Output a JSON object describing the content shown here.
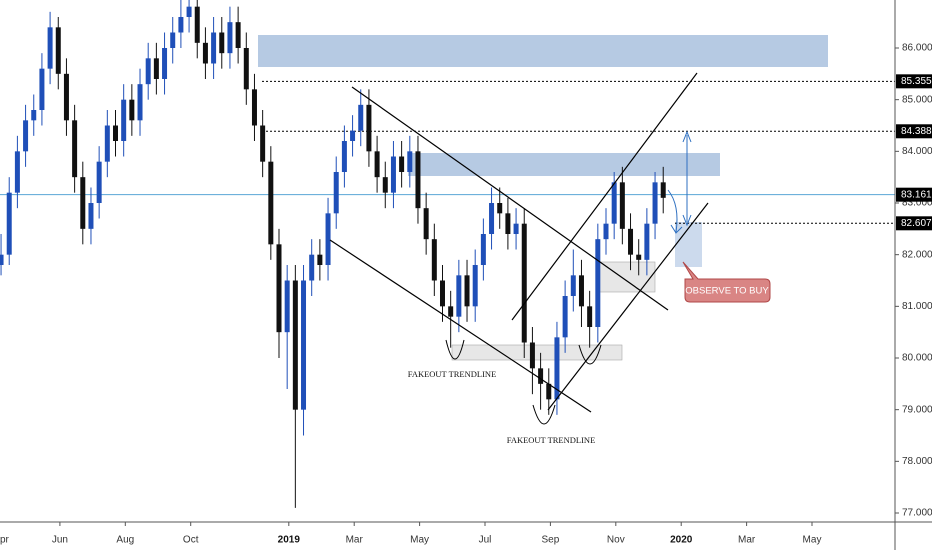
{
  "chart_data": {
    "type": "candlestick",
    "up_color": "#1f4fb8",
    "down_color": "#111111",
    "x": [
      0.2,
      0.45,
      0.7,
      0.95,
      1.2,
      1.45,
      1.7,
      1.95,
      2.2,
      2.45,
      2.7,
      2.95,
      3.2,
      3.45,
      3.7,
      3.95,
      4.2,
      4.45,
      4.7,
      4.95,
      5.2,
      5.45,
      5.7,
      5.95,
      6.2,
      6.45,
      6.7,
      6.95,
      7.2,
      7.45,
      7.7,
      7.95,
      8.2,
      8.45,
      8.7,
      8.95,
      9.2,
      9.45,
      9.7,
      9.95,
      10.2,
      10.45,
      10.7,
      10.95,
      11.2,
      11.45,
      11.7,
      11.95,
      12.2,
      12.45,
      12.7,
      12.95,
      13.2,
      13.45,
      13.7,
      13.95,
      14.2,
      14.45,
      14.7,
      14.95,
      15.2,
      15.45,
      15.7,
      15.95,
      16.2,
      16.45,
      16.7,
      16.95,
      17.2,
      17.45,
      17.7,
      17.95,
      18.2,
      18.45,
      18.7,
      18.95,
      19.2,
      19.45,
      19.7,
      19.95,
      20.2,
      20.45
    ],
    "ohlc": [
      [
        81.8,
        82.4,
        81.6,
        82.0
      ],
      [
        82.0,
        83.5,
        81.8,
        83.2
      ],
      [
        83.2,
        84.3,
        82.9,
        84.0
      ],
      [
        84.0,
        84.9,
        83.7,
        84.6
      ],
      [
        84.6,
        85.1,
        84.3,
        84.8
      ],
      [
        84.8,
        85.9,
        84.5,
        85.6
      ],
      [
        85.6,
        86.7,
        85.3,
        86.4
      ],
      [
        86.4,
        86.6,
        85.2,
        85.5
      ],
      [
        85.5,
        85.8,
        84.3,
        84.6
      ],
      [
        84.6,
        84.9,
        83.2,
        83.5
      ],
      [
        83.5,
        83.8,
        82.2,
        82.5
      ],
      [
        82.5,
        83.3,
        82.2,
        83.0
      ],
      [
        83.0,
        84.1,
        82.7,
        83.8
      ],
      [
        83.8,
        84.8,
        83.5,
        84.5
      ],
      [
        84.5,
        84.8,
        83.9,
        84.2
      ],
      [
        84.2,
        85.3,
        83.9,
        85.0
      ],
      [
        85.0,
        85.3,
        84.3,
        84.6
      ],
      [
        84.6,
        85.6,
        84.3,
        85.3
      ],
      [
        85.3,
        86.1,
        85.0,
        85.8
      ],
      [
        85.8,
        86.1,
        85.1,
        85.4
      ],
      [
        85.4,
        86.3,
        85.1,
        86.0
      ],
      [
        86.0,
        86.6,
        85.7,
        86.3
      ],
      [
        86.3,
        87.0,
        86.0,
        86.6
      ],
      [
        86.6,
        87.0,
        86.3,
        86.8
      ],
      [
        86.8,
        87.0,
        85.8,
        86.1
      ],
      [
        86.1,
        86.4,
        85.4,
        85.7
      ],
      [
        85.7,
        86.6,
        85.4,
        86.3
      ],
      [
        86.3,
        86.6,
        85.6,
        85.9
      ],
      [
        85.9,
        86.8,
        85.6,
        86.5
      ],
      [
        86.5,
        86.8,
        85.7,
        86.0
      ],
      [
        86.0,
        86.3,
        84.9,
        85.2
      ],
      [
        85.2,
        85.5,
        84.2,
        84.5
      ],
      [
        84.5,
        84.8,
        83.5,
        83.8
      ],
      [
        83.8,
        84.1,
        81.9,
        82.2
      ],
      [
        82.2,
        82.5,
        80.0,
        80.5
      ],
      [
        80.5,
        81.8,
        79.4,
        81.5
      ],
      [
        81.5,
        81.8,
        77.1,
        79.0
      ],
      [
        79.0,
        81.8,
        78.5,
        81.5
      ],
      [
        81.5,
        82.3,
        81.2,
        82.0
      ],
      [
        82.0,
        82.3,
        81.5,
        81.8
      ],
      [
        81.8,
        83.1,
        81.5,
        82.8
      ],
      [
        82.8,
        83.9,
        82.5,
        83.6
      ],
      [
        83.6,
        84.5,
        83.3,
        84.2
      ],
      [
        84.2,
        84.7,
        83.9,
        84.4
      ],
      [
        84.4,
        85.2,
        84.1,
        84.9
      ],
      [
        84.9,
        85.2,
        83.7,
        84.0
      ],
      [
        84.0,
        84.3,
        83.2,
        83.5
      ],
      [
        83.5,
        83.8,
        82.9,
        83.2
      ],
      [
        83.2,
        84.2,
        82.9,
        83.9
      ],
      [
        83.9,
        84.2,
        83.3,
        83.6
      ],
      [
        83.6,
        84.3,
        83.3,
        84.0
      ],
      [
        84.0,
        84.3,
        82.6,
        82.9
      ],
      [
        82.9,
        83.2,
        82.0,
        82.3
      ],
      [
        82.3,
        82.6,
        81.2,
        81.5
      ],
      [
        81.5,
        81.8,
        80.7,
        81.0
      ],
      [
        81.0,
        81.3,
        80.2,
        80.8
      ],
      [
        80.8,
        81.9,
        80.5,
        81.6
      ],
      [
        81.6,
        81.9,
        80.7,
        81.0
      ],
      [
        81.0,
        82.1,
        80.7,
        81.8
      ],
      [
        81.8,
        82.7,
        81.5,
        82.4
      ],
      [
        82.4,
        83.3,
        82.1,
        83.0
      ],
      [
        83.0,
        83.3,
        82.5,
        82.8
      ],
      [
        82.8,
        83.1,
        82.1,
        82.4
      ],
      [
        82.4,
        82.9,
        82.1,
        82.6
      ],
      [
        82.6,
        82.9,
        80.0,
        80.3
      ],
      [
        80.3,
        80.6,
        79.3,
        79.8
      ],
      [
        79.8,
        80.1,
        79.0,
        79.5
      ],
      [
        79.5,
        79.8,
        78.9,
        79.2
      ],
      [
        79.2,
        80.7,
        78.9,
        80.4
      ],
      [
        80.4,
        81.5,
        80.1,
        81.2
      ],
      [
        81.2,
        82.1,
        80.9,
        81.6
      ],
      [
        81.6,
        81.9,
        80.6,
        81.0
      ],
      [
        81.0,
        81.3,
        80.2,
        80.6
      ],
      [
        80.6,
        82.6,
        80.3,
        82.3
      ],
      [
        82.3,
        82.9,
        82.0,
        82.6
      ],
      [
        82.6,
        83.6,
        82.3,
        83.4
      ],
      [
        83.4,
        83.7,
        82.2,
        82.5
      ],
      [
        82.5,
        82.8,
        81.7,
        82.0
      ],
      [
        82.0,
        82.3,
        81.6,
        81.9
      ],
      [
        81.9,
        82.9,
        81.6,
        82.6
      ],
      [
        82.6,
        83.6,
        82.3,
        83.4
      ],
      [
        83.4,
        83.7,
        82.8,
        83.1
      ]
    ],
    "xlim": [
      0.168,
      27.538
    ],
    "xticks": [
      {
        "value": 0,
        "label": "pr"
      },
      {
        "value": 2,
        "label": "Jun"
      },
      {
        "value": 4,
        "label": "Aug"
      },
      {
        "value": 6,
        "label": "Oct"
      },
      {
        "value": 9,
        "label": "2019"
      },
      {
        "value": 11,
        "label": "Mar"
      },
      {
        "value": 13,
        "label": "May"
      },
      {
        "value": 15,
        "label": "Jul"
      },
      {
        "value": 17,
        "label": "Sep"
      },
      {
        "value": 19,
        "label": "Nov"
      },
      {
        "value": 21,
        "label": "2020"
      },
      {
        "value": 23,
        "label": "Mar"
      },
      {
        "value": 25,
        "label": "May"
      }
    ],
    "ylim": [
      76.826,
      86.929
    ],
    "yticks": [
      {
        "value": 77,
        "label": "77.000"
      },
      {
        "value": 78,
        "label": "78.000"
      },
      {
        "value": 79,
        "label": "79.000"
      },
      {
        "value": 80,
        "label": "80.000"
      },
      {
        "value": 81,
        "label": "81.000"
      },
      {
        "value": 82,
        "label": "82.000"
      },
      {
        "value": 83,
        "label": "83.000"
      },
      {
        "value": 84,
        "label": "84.000"
      },
      {
        "value": 85,
        "label": "85.000"
      },
      {
        "value": 86,
        "label": "86.000"
      }
    ],
    "price_lines": [
      {
        "value": 85.355,
        "color": "#000000",
        "dashed": true
      },
      {
        "value": 84.388,
        "color": "#000000",
        "dashed": true
      },
      {
        "value": 83.161,
        "color": "#5aa6d6",
        "dashed": false
      },
      {
        "value": 82.607,
        "color": "#000000",
        "dashed": true
      }
    ],
    "annotations": [
      "FAKEOUT TRENDLINE",
      "FAKEOUT TRENDLINE",
      "OBSERVE TO BUY"
    ]
  }
}
